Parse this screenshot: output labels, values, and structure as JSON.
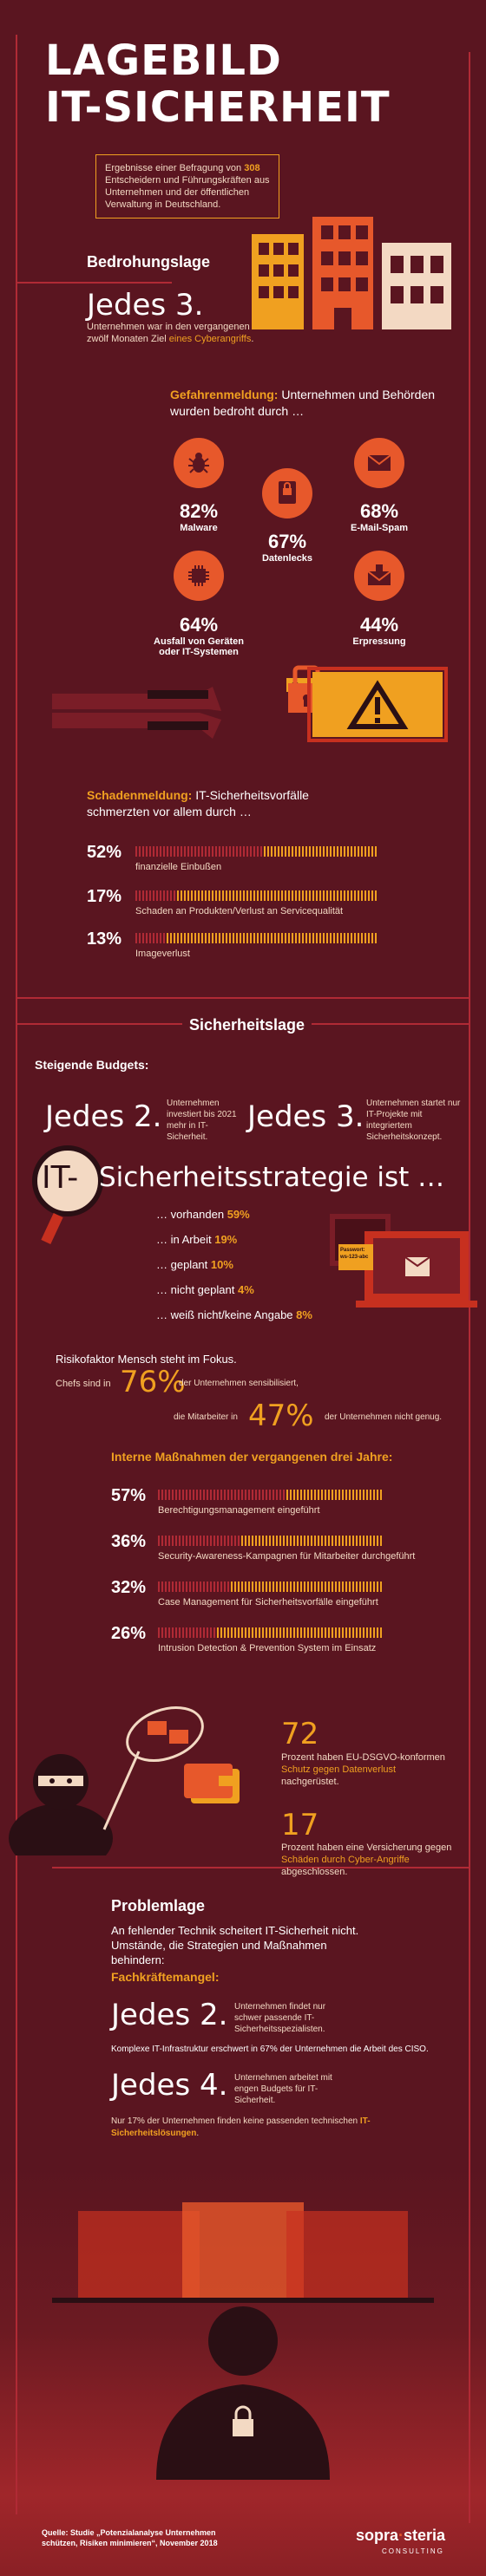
{
  "header": {
    "title_line1": "LAGEBILD",
    "title_line2": "IT-SICHERHEIT",
    "intro_pre": "Ergebnisse einer Befragung von ",
    "intro_count": "308",
    "intro_post": " Entscheidern und Führungskräften aus Unternehmen und der öffentlichen Verwaltung in Deutschland."
  },
  "threat": {
    "heading": "Bedrohungslage",
    "jedes": "Jedes 3.",
    "jedes_text_pre": "Unternehmen war in den vergangenen zwölf Monaten Ziel ",
    "jedes_text_em": "eines Cyberangriffs",
    "jedes_text_post": ".",
    "gefahr_label": "Gefahrenmeldung:",
    "gefahr_text": " Unternehmen und Behörden wurden bedroht durch …",
    "items": [
      {
        "pct": "82%",
        "label": "Malware",
        "icon": "bug-icon"
      },
      {
        "pct": "67%",
        "label": "Datenlecks",
        "icon": "data-leak-icon"
      },
      {
        "pct": "68%",
        "label": "E-Mail-Spam",
        "icon": "mail-spam-icon"
      },
      {
        "pct": "64%",
        "label": "Ausfall von Geräten oder IT-Systemen",
        "icon": "chip-icon"
      },
      {
        "pct": "44%",
        "label": "Erpressung",
        "icon": "extortion-mail-icon"
      }
    ]
  },
  "damage": {
    "label": "Schadenmeldung:",
    "text": " IT-Sicherheitsvorfälle schmerzten vor allem durch …",
    "rows": [
      {
        "pct": "52%",
        "value": 52,
        "text": "finanzielle Einbußen"
      },
      {
        "pct": "17%",
        "value": 17,
        "text": "Schaden an Produkten/Verlust an Servicequalität"
      },
      {
        "pct": "13%",
        "value": 13,
        "text": "Imageverlust"
      }
    ]
  },
  "security": {
    "heading": "Sicherheitslage",
    "budgets_label": "Steigende Budgets:",
    "jedes2": "Jedes 2.",
    "jedes2_text": "Unternehmen investiert bis 2021 mehr in IT-Sicherheit.",
    "jedes3": "Jedes 3.",
    "jedes3_text": "Unternehmen startet nur IT-Projekte mit integriertem Sicherheitskonzept.",
    "strategy_it": "IT-",
    "strategy_rest": "Sicherheitsstrategie ist …",
    "strategy": [
      {
        "text": "… vorhanden",
        "pct": "59%"
      },
      {
        "text": "… in Arbeit",
        "pct": "19%"
      },
      {
        "text": "… geplant",
        "pct": "10%"
      },
      {
        "text": "… nicht geplant",
        "pct": "4%"
      },
      {
        "text": "… weiß nicht/keine Angabe",
        "pct": "8%"
      }
    ],
    "note_label": "Passwort: ws-123-abc",
    "human_title": "Risikofaktor Mensch steht im Fokus.",
    "chefs_text": "Chefs sind in",
    "chefs_pct": "76%",
    "chefs_after": "der Unternehmen sensibilisiert,",
    "staff_text": "die Mitarbeiter in",
    "staff_pct": "47%",
    "staff_after": "der Unternehmen nicht genug."
  },
  "measures": {
    "heading": "Interne Maßnahmen der vergangenen drei Jahre:",
    "rows": [
      {
        "pct": "57%",
        "value": 57,
        "text": "Berechtigungsmanagement eingeführt"
      },
      {
        "pct": "36%",
        "value": 36,
        "text": "Security-Awareness-Kampagnen für Mitarbeiter durchgeführt"
      },
      {
        "pct": "32%",
        "value": 32,
        "text": "Case Management für Sicherheitsvorfälle eingeführt"
      },
      {
        "pct": "26%",
        "value": 26,
        "text": "Intrusion Detection & Prevention System im Einsatz"
      }
    ],
    "dsgvo_num": "72",
    "dsgvo_pre": "Prozent haben EU-DSGVO-konformen ",
    "dsgvo_em": "Schutz gegen Datenverlust",
    "dsgvo_post": " nachgerüstet.",
    "ins_num": "17",
    "ins_pre": "Prozent haben eine Versicherung gegen ",
    "ins_em": "Schäden durch Cyber-Angriffe",
    "ins_post": " abgeschlossen."
  },
  "problem": {
    "heading": "Problemlage",
    "intro": "An fehlender Technik scheitert IT-Sicherheit nicht. Umstände, die Strategien und Maßnahmen behindern:",
    "skill_label": "Fachkräftemangel:",
    "jedes2": "Jedes 2.",
    "jedes2_text": "Unternehmen findet nur schwer passende IT-Sicherheitsspezialisten.",
    "complex": "Komplexe IT-Infrastruktur erschwert in 67% der Unternehmen die Arbeit des CISO.",
    "jedes4": "Jedes 4.",
    "jedes4_text": "Unternehmen arbeitet mit engen Budgets für IT-Sicherheit.",
    "only_pre": "Nur 17% der Unternehmen finden keine passenden technischen ",
    "only_em": "IT-Sicherheitslösungen",
    "only_post": "."
  },
  "footer": {
    "source": "Quelle: Studie „Potenzialanalyse Unternehmen schützen, Risiken minimieren“, November 2018",
    "brand1": "sopra",
    "brand2": "steria",
    "brand_sub": "CONSULTING"
  },
  "colors": {
    "bg": "#5a1520",
    "accent": "#f0a020",
    "red": "#e7582b",
    "line": "#b02a35"
  }
}
